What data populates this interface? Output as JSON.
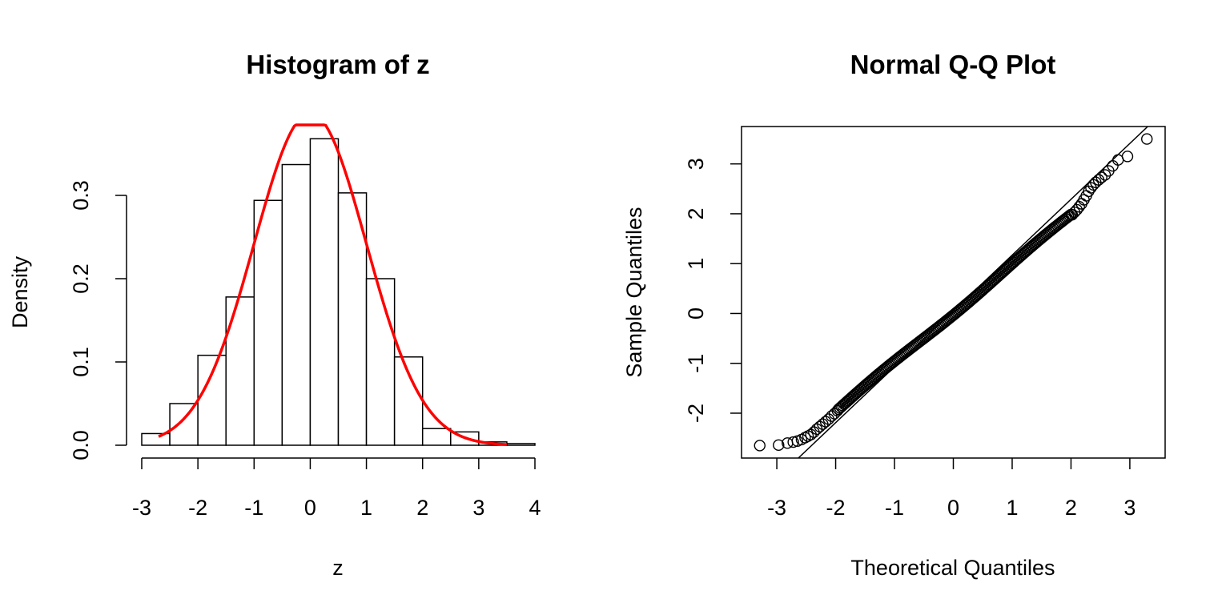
{
  "chart_data": [
    {
      "type": "bar",
      "subtype": "histogram",
      "title": "Histogram of z",
      "xlabel": "z",
      "ylabel": "Density",
      "bin_edges": [
        -3.0,
        -2.5,
        -2.0,
        -1.5,
        -1.0,
        -0.5,
        0.0,
        0.5,
        1.0,
        1.5,
        2.0,
        2.5,
        3.0,
        3.5,
        4.0
      ],
      "values": [
        0.014,
        0.05,
        0.108,
        0.178,
        0.294,
        0.337,
        0.368,
        0.303,
        0.2,
        0.106,
        0.02,
        0.016,
        0.004,
        0.002
      ],
      "xticks": [
        "-3",
        "-2",
        "-1",
        "0",
        "1",
        "2",
        "3",
        "4"
      ],
      "yticks": [
        "0.0",
        "0.1",
        "0.2",
        "0.3"
      ],
      "xlim": [
        -3,
        4
      ],
      "ylim": [
        0,
        0.38
      ],
      "overlay": {
        "type": "line",
        "description": "normal density curve",
        "color": "#ff0000",
        "mean": 0,
        "sd": 1,
        "x_range": [
          -2.7,
          3.5
        ]
      },
      "bar_fill": "#ffffff",
      "bar_stroke": "#000000",
      "grid": false
    },
    {
      "type": "scatter",
      "subtype": "qq-plot",
      "title": "Normal Q-Q Plot",
      "xlabel": "Theoretical Quantiles",
      "ylabel": "Sample Quantiles",
      "xticks": [
        "-3",
        "-2",
        "-1",
        "0",
        "1",
        "2",
        "3"
      ],
      "yticks": [
        "-2",
        "-1",
        "0",
        "1",
        "2",
        "3"
      ],
      "xlim": [
        -3.6,
        3.6
      ],
      "ylim": [
        -2.9,
        3.75
      ],
      "reference_line": {
        "intercept": 0.05,
        "slope": 1.12
      },
      "points_x": [
        -3.29,
        -2.97,
        -2.82,
        -2.72,
        -2.65,
        -2.58,
        -2.52,
        -2.47,
        -2.42,
        -2.37,
        -2.32,
        -2.27,
        -2.22,
        -2.17,
        -2.12,
        -2.07,
        -2.02,
        -1.97,
        2.02,
        2.06,
        2.1,
        2.14,
        2.18,
        2.22,
        2.26,
        2.3,
        2.34,
        2.38,
        2.42,
        2.47,
        2.52,
        2.58,
        2.64,
        2.71,
        2.8,
        2.96,
        3.29
      ],
      "points_y": [
        -2.65,
        -2.64,
        -2.6,
        -2.58,
        -2.56,
        -2.53,
        -2.49,
        -2.46,
        -2.43,
        -2.38,
        -2.32,
        -2.27,
        -2.22,
        -2.17,
        -2.12,
        -2.06,
        -2.01,
        -1.95,
        1.98,
        2.03,
        2.08,
        2.14,
        2.2,
        2.28,
        2.36,
        2.45,
        2.52,
        2.58,
        2.63,
        2.68,
        2.73,
        2.78,
        2.86,
        2.96,
        3.08,
        3.15,
        3.5
      ],
      "dense_range": {
        "x": [
          -1.95,
          2.0
        ],
        "y": [
          -1.92,
          1.97
        ],
        "note": "sample quantiles lie on a near-straight line through this range"
      },
      "marker": "open-circle",
      "grid": false
    }
  ]
}
